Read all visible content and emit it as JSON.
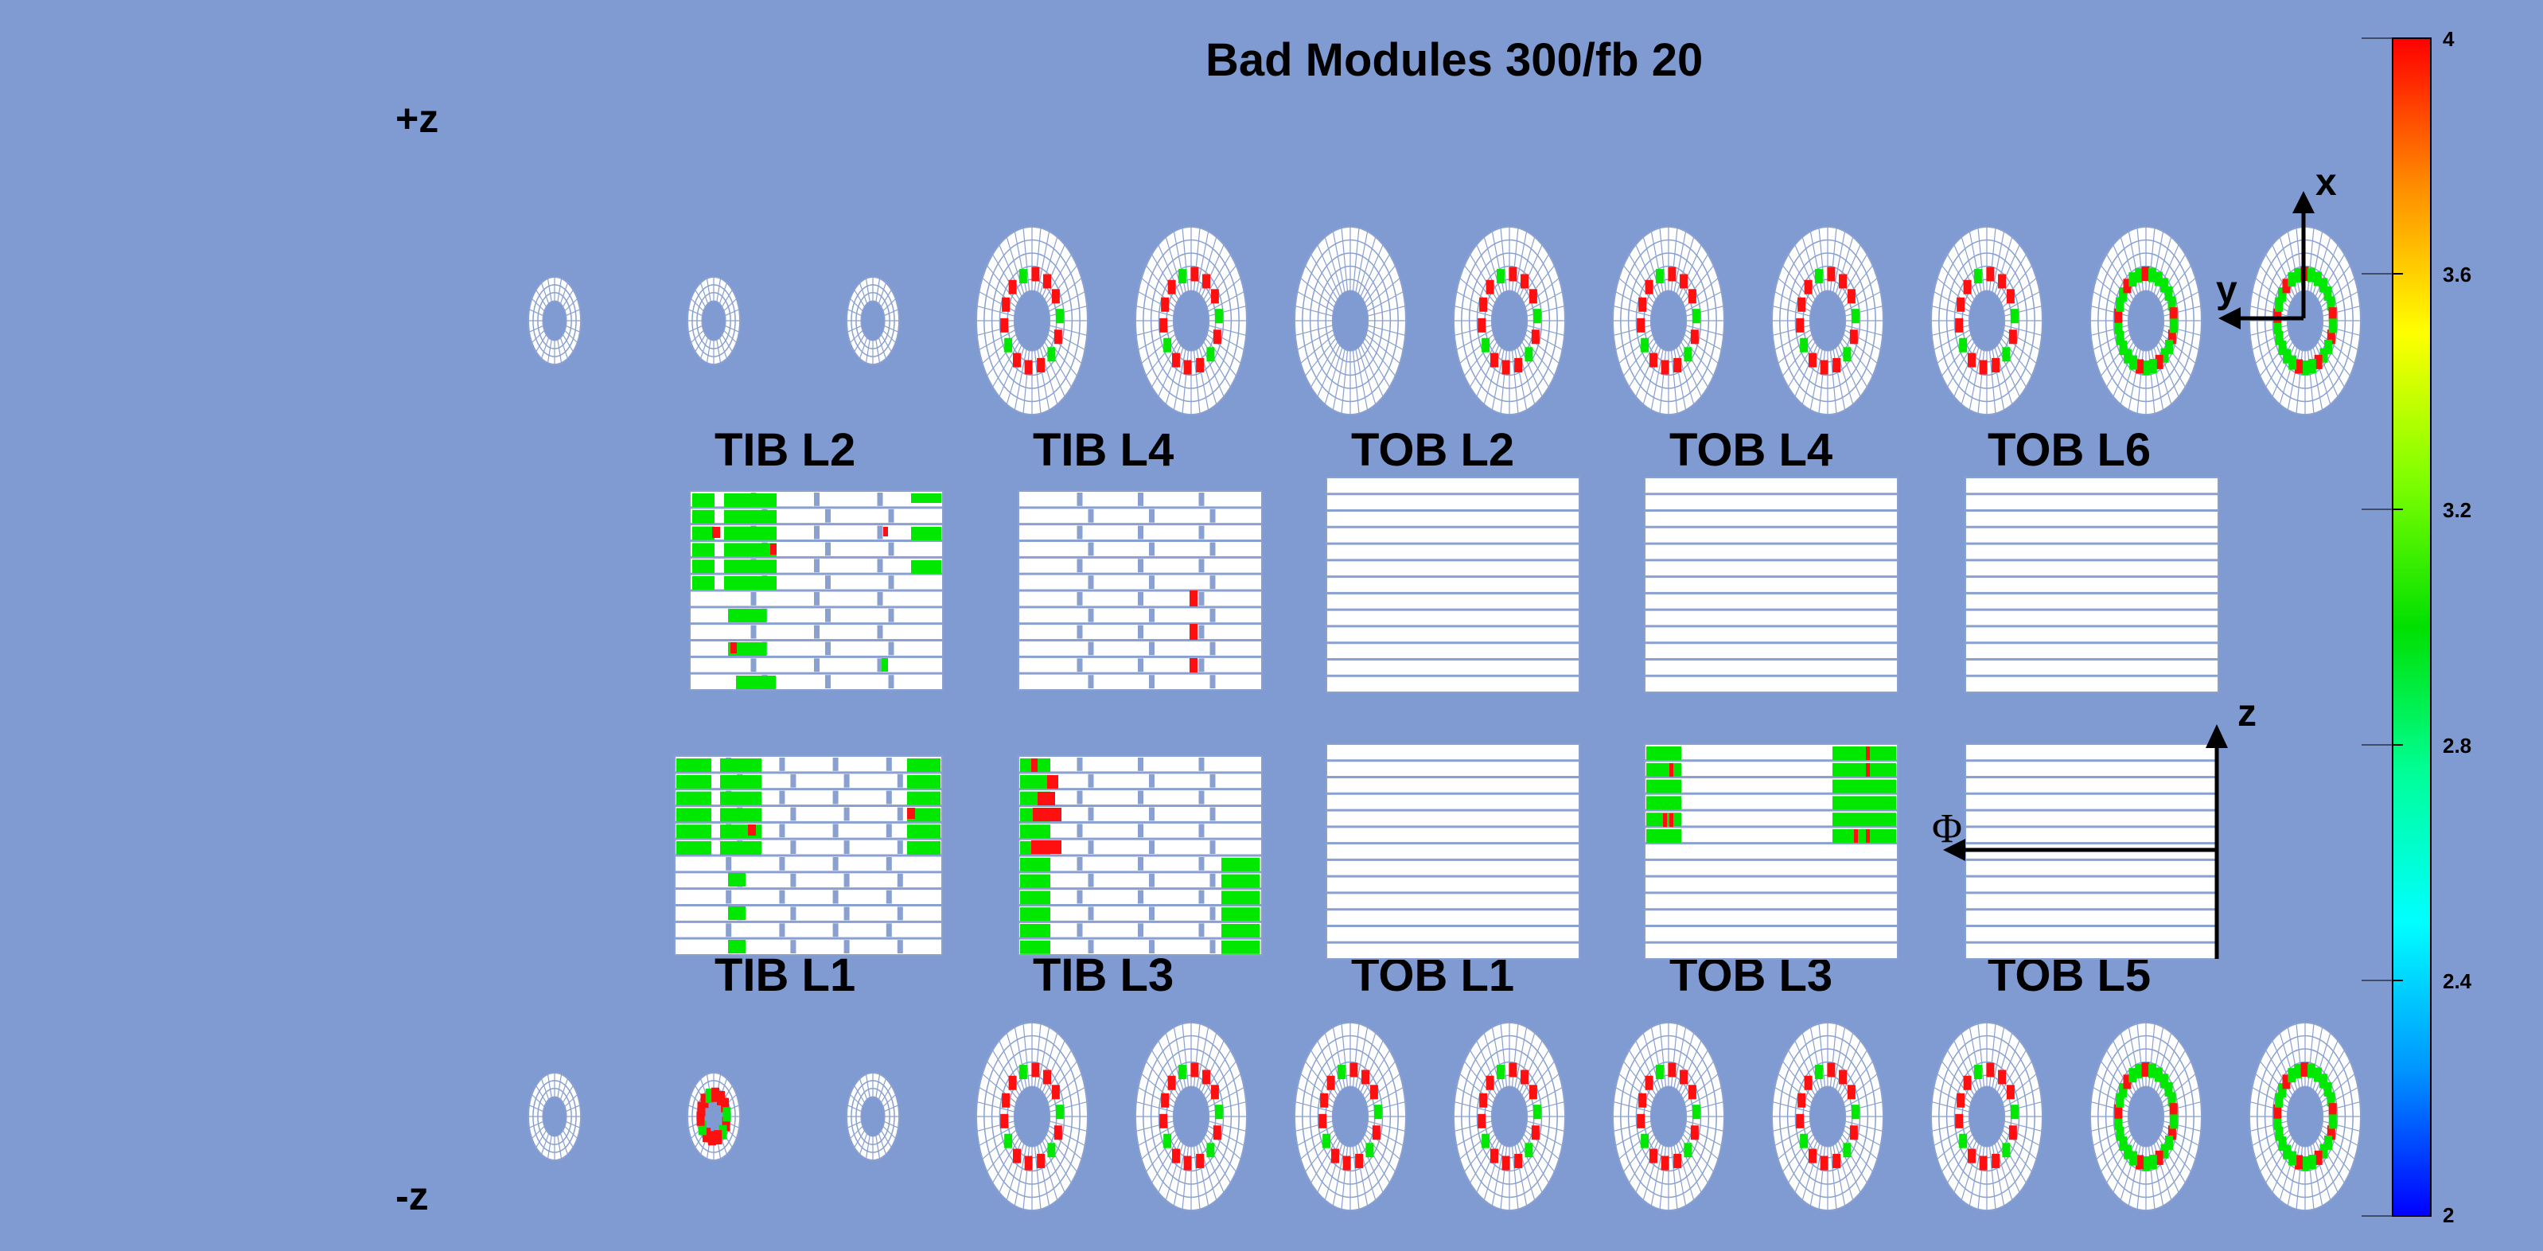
{
  "title": "Bad Modules 300/fb 20",
  "plus_z_label": "+z",
  "minus_z_label": "-z",
  "panel_labels_top": [
    "TIB L2",
    "TIB L4",
    "TOB L2",
    "TOB L4",
    "TOB L6"
  ],
  "panel_labels_bottom": [
    "TIB L1",
    "TIB L3",
    "TOB L1",
    "TOB L3",
    "TOB L5"
  ],
  "axis_labels": {
    "x": "x",
    "y": "y",
    "z": "z",
    "phi": "Φ"
  },
  "colorbar": {
    "min": 2,
    "max": 4,
    "tick_labels": [
      "4",
      "3.6",
      "3.2",
      "2.8",
      "2.4",
      "2"
    ],
    "colors": [
      "#ff0000",
      "#ff8c00",
      "#ffff00",
      "#7fff00",
      "#00e000",
      "#00ff99",
      "#00ffff",
      "#0096ff",
      "#0000ff"
    ]
  },
  "colors": {
    "background": "#7f9bd2",
    "good_module": "#ffffff",
    "grid_line": "#8aa0d0",
    "bad_red": "#ff1010",
    "bad_green": "#00e800"
  }
}
